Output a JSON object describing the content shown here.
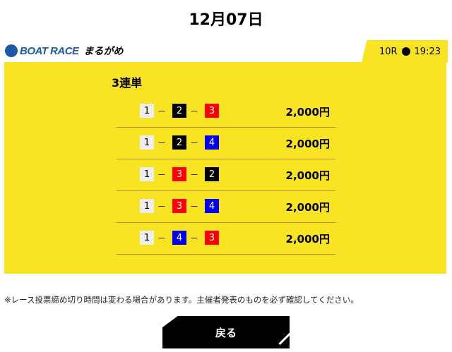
{
  "date": "12月07日",
  "logo": {
    "brand": "BOAT RACE",
    "venue": "まるがめ"
  },
  "race": {
    "number": "10R",
    "time": "19:23"
  },
  "bet_type": "3連単",
  "colors": {
    "1": "#eeeeee",
    "2": "#000000",
    "3": "#ff0000",
    "4": "#0000ee",
    "accent": "#f9e424"
  },
  "bets": [
    {
      "combo": [
        "1",
        "2",
        "3"
      ],
      "amount": "2,000円"
    },
    {
      "combo": [
        "1",
        "2",
        "4"
      ],
      "amount": "2,000円"
    },
    {
      "combo": [
        "1",
        "3",
        "2"
      ],
      "amount": "2,000円"
    },
    {
      "combo": [
        "1",
        "3",
        "4"
      ],
      "amount": "2,000円"
    },
    {
      "combo": [
        "1",
        "4",
        "3"
      ],
      "amount": "2,000円"
    }
  ],
  "separator": "－",
  "note": "※レース投票締め切り時間は変わる場合があります。主催者発表のものを必ず確認してください。",
  "back_label": "戻る"
}
